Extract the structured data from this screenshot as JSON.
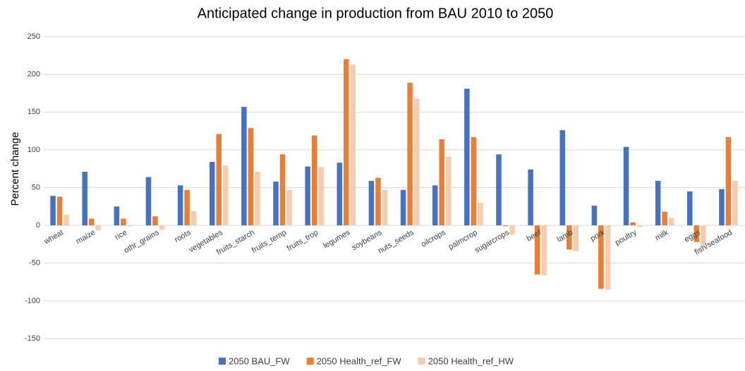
{
  "chart_data": {
    "type": "bar",
    "title": "Anticipated change in production from BAU 2010 to 2050",
    "ylabel": "Percent change",
    "categories": [
      "wheat",
      "maize",
      "rice",
      "othr_grains",
      "roots",
      "vegetables",
      "fruits_starch",
      "fruits_temp",
      "fruits_trop",
      "legumes",
      "soybeans",
      "nuts_seeds",
      "oilcrops",
      "palmcrop",
      "sugarcrops",
      "beef",
      "lamb",
      "pork",
      "poultry",
      "milk",
      "eggs",
      "fish/seafood"
    ],
    "series": [
      {
        "name": "2050 BAU_FW",
        "color": "#4472c4",
        "values": [
          39,
          71,
          25,
          64,
          53,
          84,
          157,
          58,
          78,
          83,
          59,
          47,
          53,
          181,
          94,
          74,
          126,
          26,
          104,
          59,
          45,
          48
        ]
      },
      {
        "name": "2050 Health_ref_FW",
        "color": "#ed7d31",
        "values": [
          38,
          9,
          9,
          12,
          47,
          121,
          129,
          94,
          119,
          220,
          63,
          189,
          114,
          117,
          -1,
          -65,
          -32,
          -84,
          4,
          18,
          -22,
          117
        ]
      },
      {
        "name": "2050 Health_ref_HW",
        "color": "#f8cbad",
        "values": [
          14,
          -7,
          -1,
          -6,
          19,
          79,
          71,
          47,
          77,
          213,
          47,
          168,
          91,
          30,
          -12,
          -66,
          -34,
          -85,
          -2,
          10,
          -26,
          59
        ]
      }
    ],
    "ylim": [
      -150,
      250
    ],
    "yticks": [
      -150,
      -100,
      -50,
      0,
      50,
      100,
      150,
      200,
      250
    ],
    "grid": true,
    "legend": "bottom"
  }
}
